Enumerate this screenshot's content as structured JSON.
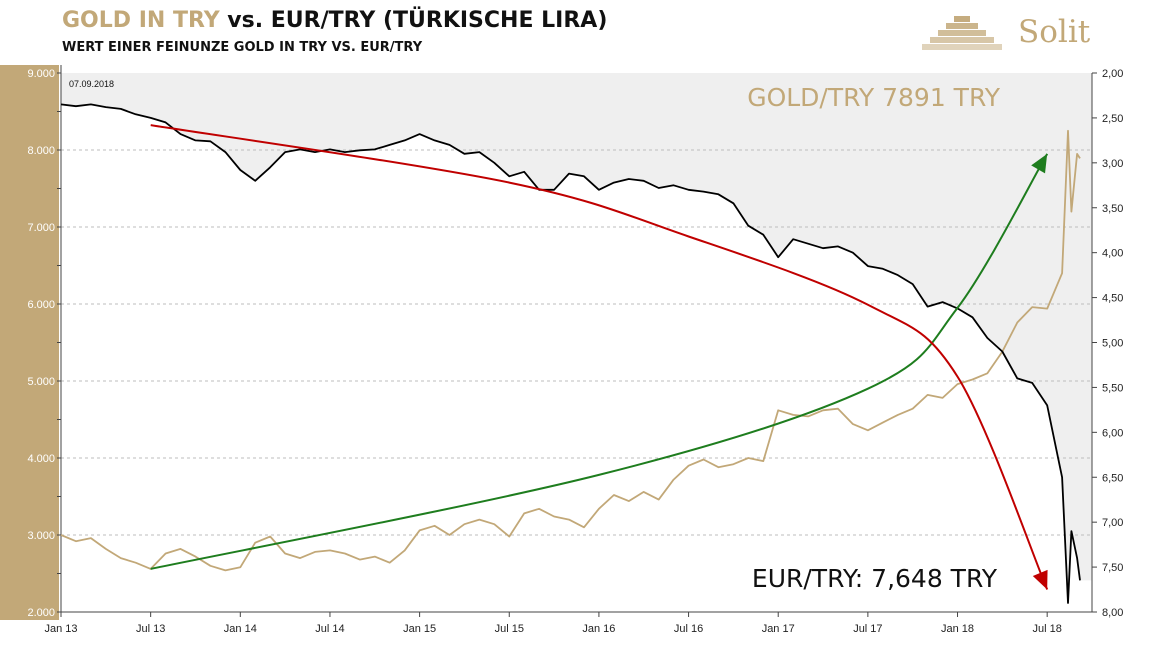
{
  "header": {
    "title_part1": "GOLD IN TRY",
    "title_part2": " vs. EUR/TRY (TÜRKISCHE LIRA)",
    "subtitle": "WERT EINER FEINUNZE GOLD IN TRY VS. EUR/TRY",
    "logo_text": "Solit"
  },
  "colors": {
    "gold": "#C2A878",
    "black": "#000000",
    "green": "#1E7D1E",
    "red": "#C00000",
    "band": "#EFEFEF",
    "left_axis_fill": "#C2A878"
  },
  "chart_data": {
    "type": "line",
    "date_label": "07.09.2018",
    "x": [
      "Jan 13",
      "Jul 13",
      "Jan 14",
      "Jul 14",
      "Jan 15",
      "Jul 15",
      "Jan 16",
      "Jul 16",
      "Jan 17",
      "Jul 17",
      "Jan 18",
      "Jul 18"
    ],
    "y_left": {
      "ticks": [
        "2.000",
        "3.000",
        "4.000",
        "5.000",
        "6.000",
        "7.000",
        "8.000",
        "9.000"
      ],
      "range": [
        2000,
        9000
      ]
    },
    "y_right": {
      "ticks": [
        "2,00",
        "2,50",
        "3,00",
        "3,50",
        "4,00",
        "4,50",
        "5,00",
        "5,50",
        "6,00",
        "6,50",
        "7,00",
        "7,50",
        "8,00"
      ],
      "range": [
        2.0,
        8.0
      ],
      "inverted": true
    },
    "annotations": {
      "gold_label": "GOLD/TRY 7891 TRY",
      "eur_label": "EUR/TRY: 7,648 TRY"
    },
    "series": [
      {
        "axis": "left",
        "points": [
          [
            "2013-01",
            3000
          ],
          [
            "2013-02",
            2920
          ],
          [
            "2013-03",
            2960
          ],
          [
            "2013-04",
            2820
          ],
          [
            "2013-05",
            2700
          ],
          [
            "2013-06",
            2640
          ],
          [
            "2013-07",
            2560
          ],
          [
            "2013-08",
            2760
          ],
          [
            "2013-09",
            2820
          ],
          [
            "2013-10",
            2720
          ],
          [
            "2013-11",
            2600
          ],
          [
            "2013-12",
            2540
          ],
          [
            "2014-01",
            2580
          ],
          [
            "2014-02",
            2900
          ],
          [
            "2014-03",
            2980
          ],
          [
            "2014-04",
            2760
          ],
          [
            "2014-05",
            2700
          ],
          [
            "2014-06",
            2780
          ],
          [
            "2014-07",
            2800
          ],
          [
            "2014-08",
            2760
          ],
          [
            "2014-09",
            2680
          ],
          [
            "2014-10",
            2720
          ],
          [
            "2014-11",
            2640
          ],
          [
            "2014-12",
            2800
          ],
          [
            "2015-01",
            3060
          ],
          [
            "2015-02",
            3120
          ],
          [
            "2015-03",
            3000
          ],
          [
            "2015-04",
            3140
          ],
          [
            "2015-05",
            3200
          ],
          [
            "2015-06",
            3140
          ],
          [
            "2015-07",
            2980
          ],
          [
            "2015-08",
            3280
          ],
          [
            "2015-09",
            3340
          ],
          [
            "2015-10",
            3240
          ],
          [
            "2015-11",
            3200
          ],
          [
            "2015-12",
            3100
          ],
          [
            "2016-01",
            3340
          ],
          [
            "2016-02",
            3520
          ],
          [
            "2016-03",
            3440
          ],
          [
            "2016-04",
            3560
          ],
          [
            "2016-05",
            3460
          ],
          [
            "2016-06",
            3720
          ],
          [
            "2016-07",
            3900
          ],
          [
            "2016-08",
            3980
          ],
          [
            "2016-09",
            3880
          ],
          [
            "2016-10",
            3920
          ],
          [
            "2016-11",
            4000
          ],
          [
            "2016-12",
            3960
          ],
          [
            "2017-01",
            4620
          ],
          [
            "2017-02",
            4560
          ],
          [
            "2017-03",
            4540
          ],
          [
            "2017-04",
            4620
          ],
          [
            "2017-05",
            4640
          ],
          [
            "2017-06",
            4440
          ],
          [
            "2017-07",
            4360
          ],
          [
            "2017-08",
            4460
          ],
          [
            "2017-09",
            4560
          ],
          [
            "2017-10",
            4640
          ],
          [
            "2017-11",
            4820
          ],
          [
            "2017-12",
            4780
          ],
          [
            "2018-01",
            4960
          ],
          [
            "2018-02",
            5020
          ],
          [
            "2018-03",
            5100
          ],
          [
            "2018-04",
            5380
          ],
          [
            "2018-05",
            5760
          ],
          [
            "2018-06",
            5960
          ],
          [
            "2018-07",
            5940
          ],
          [
            "2018-08",
            6400
          ],
          [
            "2018-08-13",
            8250
          ],
          [
            "2018-08-20",
            7200
          ],
          [
            "2018-09-01",
            7950
          ],
          [
            "2018-09-07",
            7891
          ]
        ]
      },
      {
        "axis": "right",
        "points": [
          [
            "2013-01",
            2.35
          ],
          [
            "2013-02",
            2.37
          ],
          [
            "2013-03",
            2.35
          ],
          [
            "2013-04",
            2.38
          ],
          [
            "2013-05",
            2.4
          ],
          [
            "2013-06",
            2.46
          ],
          [
            "2013-07",
            2.5
          ],
          [
            "2013-08",
            2.55
          ],
          [
            "2013-09",
            2.68
          ],
          [
            "2013-10",
            2.75
          ],
          [
            "2013-11",
            2.76
          ],
          [
            "2013-12",
            2.88
          ],
          [
            "2014-01",
            3.08
          ],
          [
            "2014-02",
            3.2
          ],
          [
            "2014-03",
            3.05
          ],
          [
            "2014-04",
            2.88
          ],
          [
            "2014-05",
            2.85
          ],
          [
            "2014-06",
            2.88
          ],
          [
            "2014-07",
            2.85
          ],
          [
            "2014-08",
            2.88
          ],
          [
            "2014-09",
            2.86
          ],
          [
            "2014-10",
            2.85
          ],
          [
            "2014-11",
            2.8
          ],
          [
            "2014-12",
            2.75
          ],
          [
            "2015-01",
            2.68
          ],
          [
            "2015-02",
            2.75
          ],
          [
            "2015-03",
            2.8
          ],
          [
            "2015-04",
            2.9
          ],
          [
            "2015-05",
            2.88
          ],
          [
            "2015-06",
            3.0
          ],
          [
            "2015-07",
            3.15
          ],
          [
            "2015-08",
            3.1
          ],
          [
            "2015-09",
            3.3
          ],
          [
            "2015-10",
            3.3
          ],
          [
            "2015-11",
            3.12
          ],
          [
            "2015-12",
            3.15
          ],
          [
            "2016-01",
            3.3
          ],
          [
            "2016-02",
            3.22
          ],
          [
            "2016-03",
            3.18
          ],
          [
            "2016-04",
            3.2
          ],
          [
            "2016-05",
            3.28
          ],
          [
            "2016-06",
            3.25
          ],
          [
            "2016-07",
            3.3
          ],
          [
            "2016-08",
            3.32
          ],
          [
            "2016-09",
            3.35
          ],
          [
            "2016-10",
            3.45
          ],
          [
            "2016-11",
            3.7
          ],
          [
            "2016-12",
            3.8
          ],
          [
            "2017-01",
            4.05
          ],
          [
            "2017-02",
            3.85
          ],
          [
            "2017-03",
            3.9
          ],
          [
            "2017-04",
            3.95
          ],
          [
            "2017-05",
            3.93
          ],
          [
            "2017-06",
            4.0
          ],
          [
            "2017-07",
            4.15
          ],
          [
            "2017-08",
            4.18
          ],
          [
            "2017-09",
            4.25
          ],
          [
            "2017-10",
            4.35
          ],
          [
            "2017-11",
            4.6
          ],
          [
            "2017-12",
            4.55
          ],
          [
            "2018-01",
            4.62
          ],
          [
            "2018-02",
            4.72
          ],
          [
            "2018-03",
            4.95
          ],
          [
            "2018-04",
            5.1
          ],
          [
            "2018-05",
            5.4
          ],
          [
            "2018-06",
            5.45
          ],
          [
            "2018-07",
            5.7
          ],
          [
            "2018-08",
            6.5
          ],
          [
            "2018-08-13",
            7.9
          ],
          [
            "2018-08-20",
            7.1
          ],
          [
            "2018-09-01",
            7.4
          ],
          [
            "2018-09-07",
            7.648
          ]
        ]
      }
    ],
    "trend_green": [
      [
        "2013-07",
        2560
      ],
      [
        "2016-01",
        3780
      ],
      [
        "2017-07",
        4900
      ],
      [
        "2018-01",
        5950
      ],
      [
        "2018-07",
        7950
      ]
    ],
    "trend_red": [
      [
        "2013-07",
        2.58
      ],
      [
        "2015-07",
        3.22
      ],
      [
        "2016-07",
        3.82
      ],
      [
        "2017-07",
        4.58
      ],
      [
        "2018-01",
        5.38
      ],
      [
        "2018-07",
        7.75
      ]
    ]
  }
}
